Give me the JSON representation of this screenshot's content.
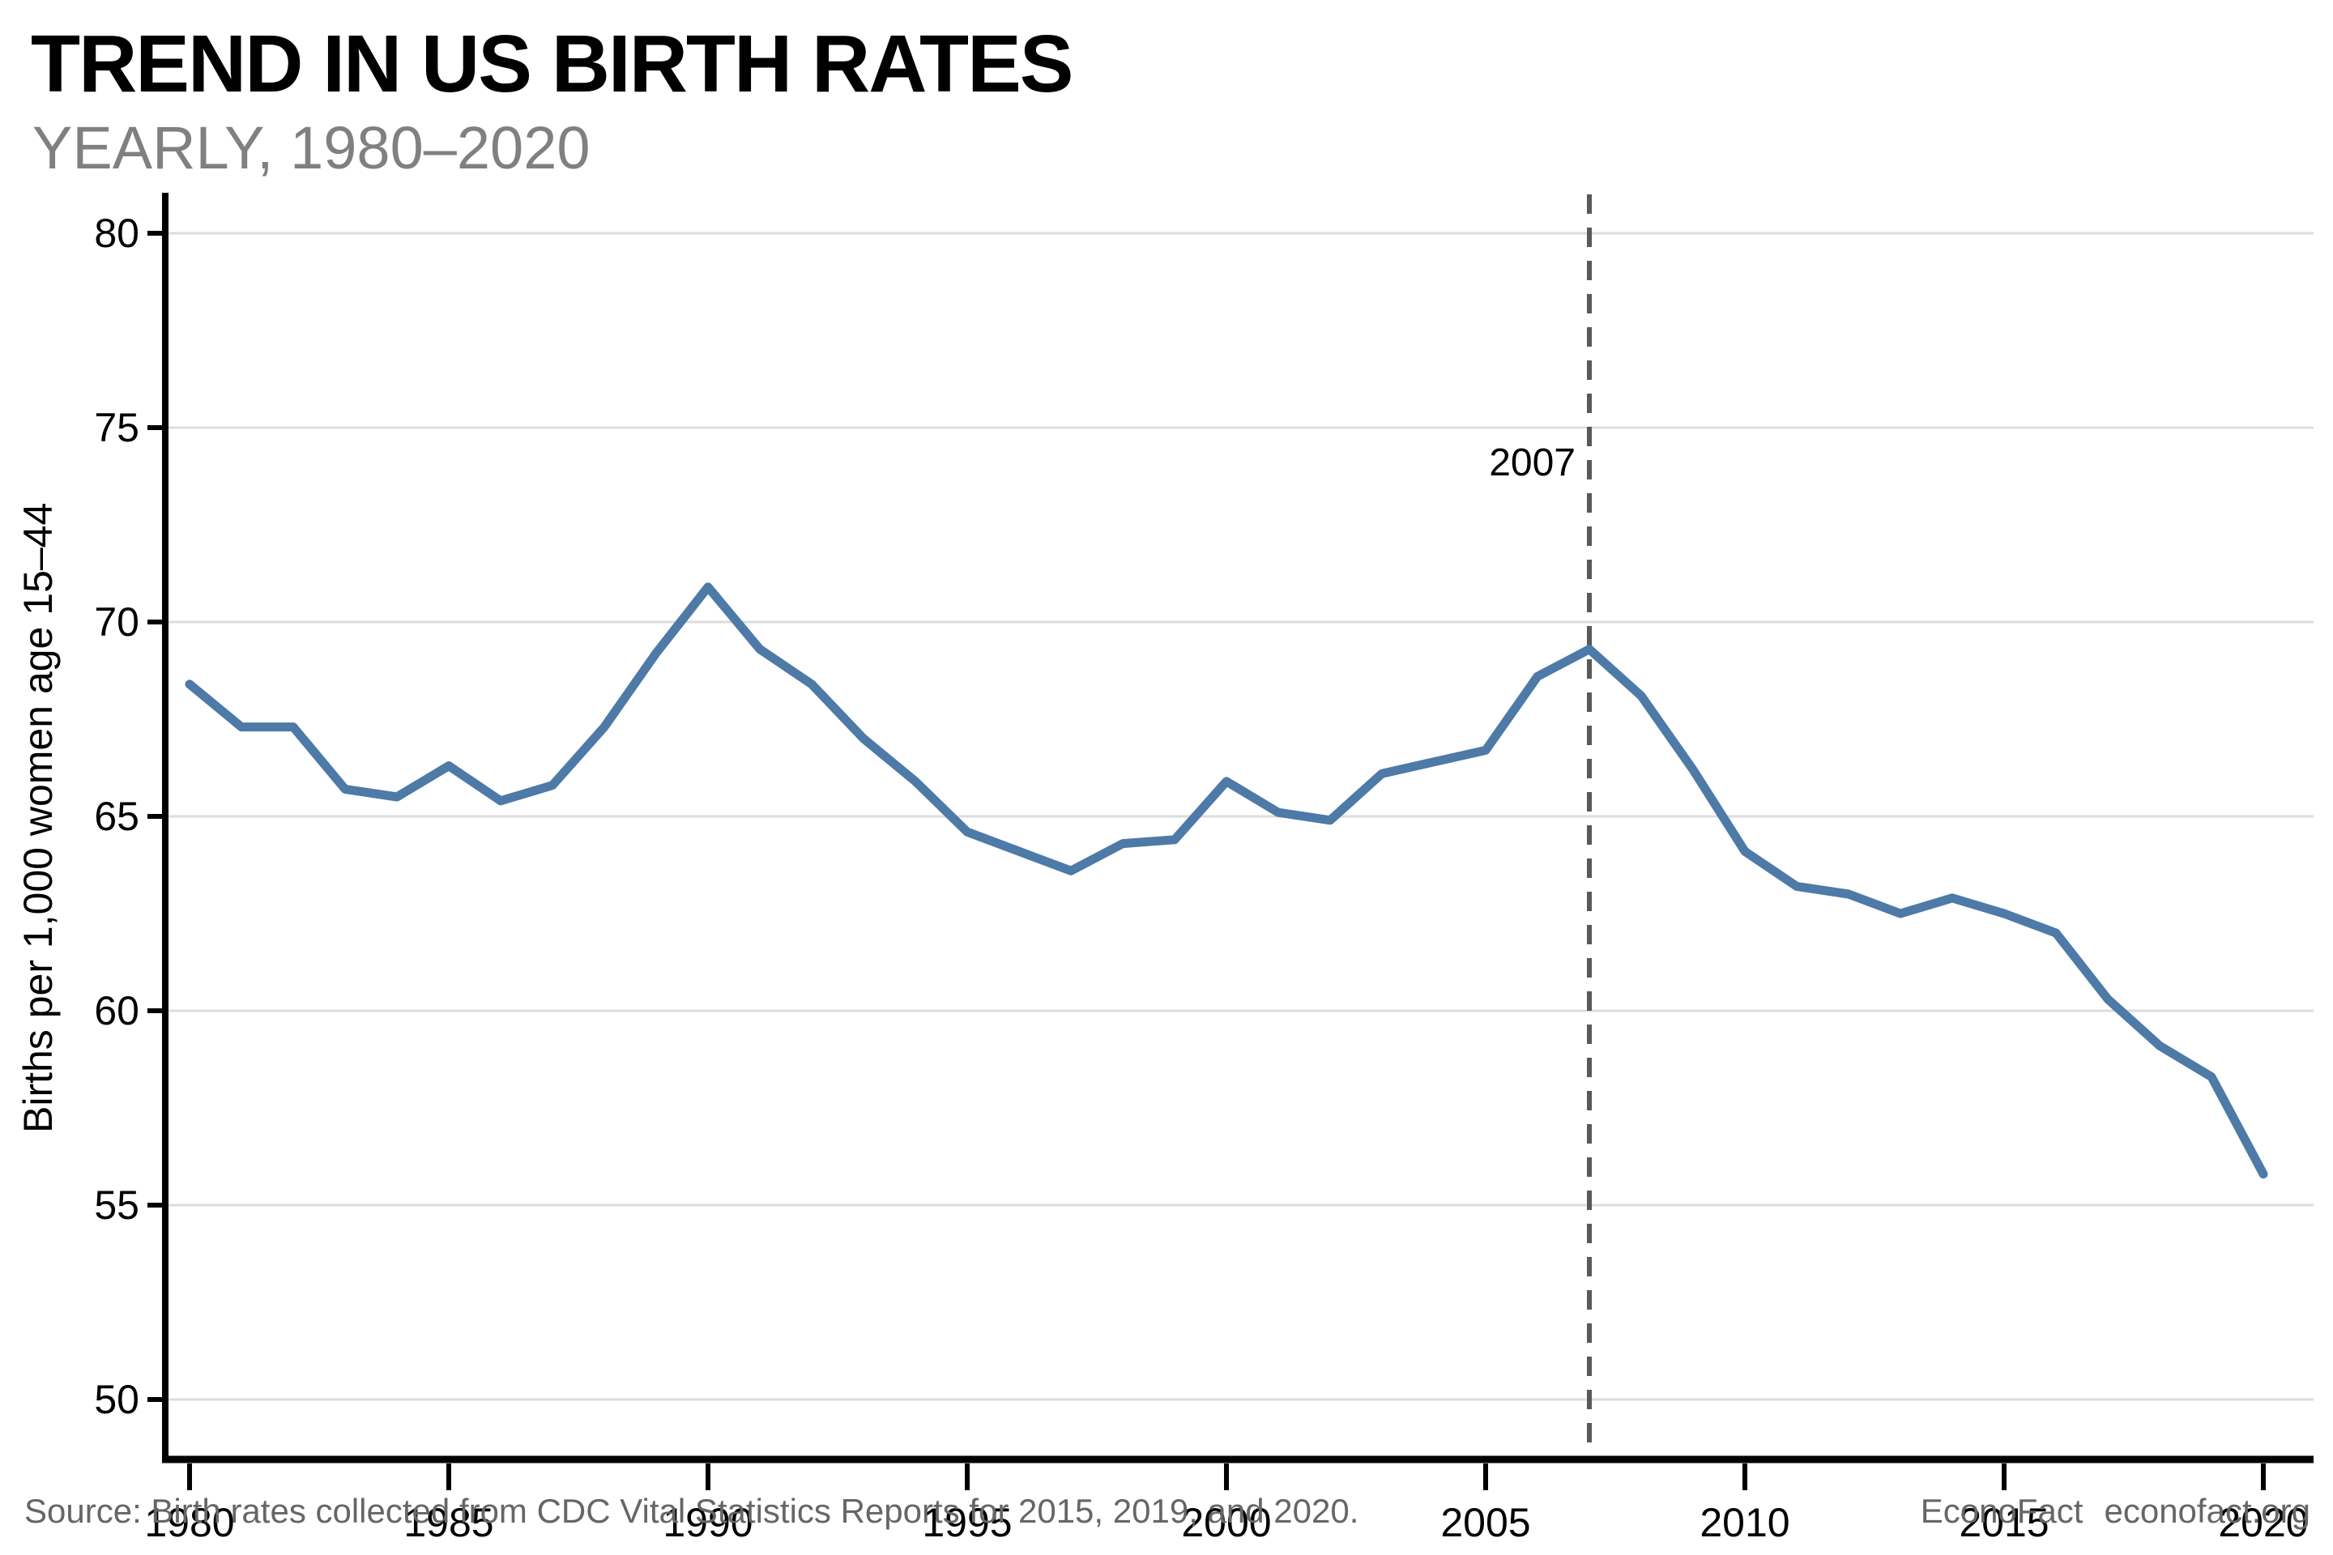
{
  "header": {
    "title": "TREND IN US BIRTH RATES",
    "subtitle": "YEARLY, 1980–2020"
  },
  "footer": {
    "source": "Source: Birth rates collected from CDC Vital Statistics Reports for 2015, 2019, and 2020.",
    "brand": "EconoFact",
    "site": "econofact.org"
  },
  "chart_data": {
    "type": "line",
    "title": "TREND IN US BIRTH RATES",
    "subtitle": "YEARLY, 1980–2020",
    "xlabel": "",
    "ylabel": "Births per 1,000 women age 15–44",
    "xlim": [
      1980,
      2020
    ],
    "ylim": [
      50,
      80
    ],
    "xticks": [
      1980,
      1985,
      1990,
      1995,
      2000,
      2005,
      2010,
      2015,
      2020
    ],
    "yticks": [
      50,
      55,
      60,
      65,
      70,
      75,
      80
    ],
    "grid": true,
    "legend": "none",
    "x": [
      1980,
      1981,
      1982,
      1983,
      1984,
      1985,
      1986,
      1987,
      1988,
      1989,
      1990,
      1991,
      1992,
      1993,
      1994,
      1995,
      1996,
      1997,
      1998,
      1999,
      2000,
      2001,
      2002,
      2003,
      2004,
      2005,
      2006,
      2007,
      2008,
      2009,
      2010,
      2011,
      2012,
      2013,
      2014,
      2015,
      2016,
      2017,
      2018,
      2019,
      2020
    ],
    "values": [
      68.4,
      67.3,
      67.3,
      65.7,
      65.5,
      66.3,
      65.4,
      65.8,
      67.3,
      69.2,
      70.9,
      69.3,
      68.4,
      67.0,
      65.9,
      64.6,
      64.1,
      63.6,
      64.3,
      64.4,
      65.9,
      65.1,
      64.9,
      66.1,
      66.4,
      66.7,
      68.6,
      69.3,
      68.1,
      66.2,
      64.1,
      63.2,
      63.0,
      62.5,
      62.9,
      62.5,
      62.0,
      60.3,
      59.1,
      58.3,
      55.8
    ],
    "annotation": {
      "label": "2007",
      "x": 2007
    },
    "colors": {
      "line": "#4d7aa7",
      "dashed_line": "#595959",
      "gridline": "#dcdcdc",
      "axis": "#000000",
      "tick_label": "#000000",
      "subtitle": "#808080",
      "footer_text": "#666666",
      "background": "#ffffff"
    }
  }
}
